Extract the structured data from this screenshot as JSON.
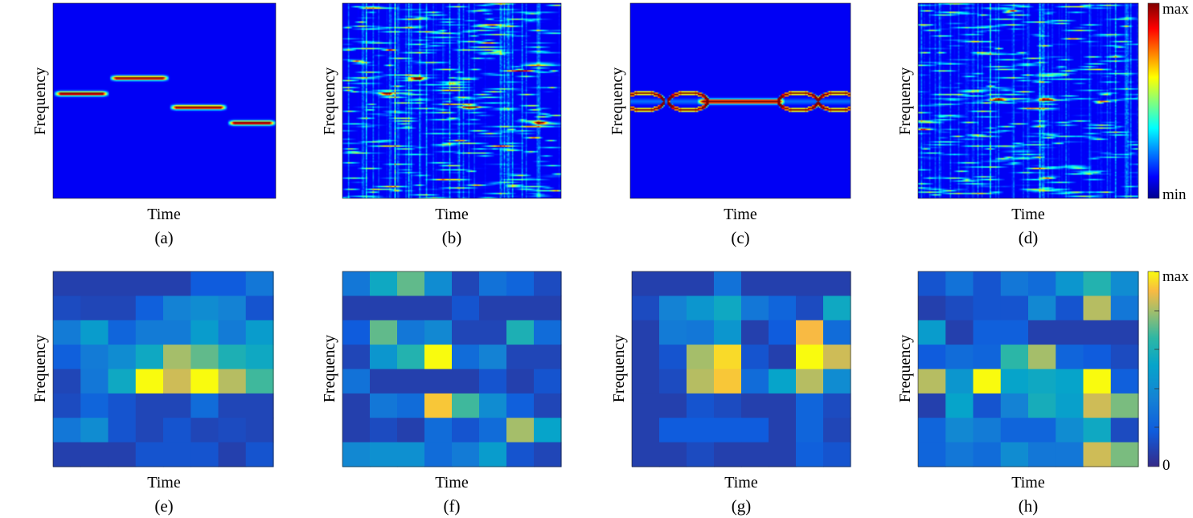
{
  "colors": {
    "jet_low": "#00008f",
    "jet_mid": "#00ffff",
    "jet_high": "#800000",
    "parula_low": "#352a87",
    "parula_mid": "#1ab2c3",
    "parula_high": "#f9fb0e"
  },
  "colorbars": {
    "top": {
      "colormap": "jet",
      "max_label": "max",
      "min_label": "min"
    },
    "bottom": {
      "colormap": "parula",
      "max_label": "max",
      "min_label": "0"
    }
  },
  "chart_data": [
    {
      "type": "heatmap",
      "panel": "(a)",
      "colormap": "jet",
      "xlabel": "Time",
      "ylabel": "Frequency",
      "description_tracks": [
        [
          0.0,
          0.25,
          0.46
        ],
        [
          0.25,
          0.52,
          0.38
        ],
        [
          0.52,
          0.78,
          0.53
        ],
        [
          0.78,
          1.0,
          0.61
        ]
      ]
    },
    {
      "type": "heatmap",
      "panel": "(b)",
      "colormap": "jet",
      "xlabel": "Time",
      "ylabel": "Frequency",
      "noise_level": 0.35,
      "seed": 7,
      "peaks": [
        [
          0.2,
          0.46
        ],
        [
          0.34,
          0.38
        ],
        [
          0.58,
          0.53
        ],
        [
          0.9,
          0.61
        ]
      ]
    },
    {
      "type": "heatmap",
      "panel": "(c)",
      "colormap": "jet",
      "xlabel": "Time",
      "ylabel": "Frequency",
      "tracks": [
        [
          0.3,
          0.7,
          0.5
        ]
      ],
      "ring_level": 0.5
    },
    {
      "type": "heatmap",
      "panel": "(d)",
      "colormap": "jet",
      "xlabel": "Time",
      "ylabel": "Frequency",
      "noise_level": 0.35,
      "seed": 23,
      "peaks": [
        [
          0.36,
          0.49
        ],
        [
          0.58,
          0.49
        ]
      ]
    },
    {
      "type": "heatmap",
      "panel": "(e)",
      "colormap": "parula",
      "xlabel": "Time",
      "ylabel": "Frequency",
      "values": [
        [
          0.08,
          0.08,
          0.08,
          0.08,
          0.08,
          0.18,
          0.18,
          0.3
        ],
        [
          0.12,
          0.1,
          0.1,
          0.2,
          0.35,
          0.4,
          0.35,
          0.15
        ],
        [
          0.32,
          0.48,
          0.22,
          0.32,
          0.32,
          0.48,
          0.32,
          0.48
        ],
        [
          0.2,
          0.32,
          0.4,
          0.55,
          0.8,
          0.72,
          0.6,
          0.55
        ],
        [
          0.1,
          0.3,
          0.55,
          1.0,
          0.85,
          1.0,
          0.82,
          0.68
        ],
        [
          0.12,
          0.22,
          0.15,
          0.1,
          0.1,
          0.25,
          0.1,
          0.1
        ],
        [
          0.3,
          0.4,
          0.15,
          0.1,
          0.15,
          0.1,
          0.12,
          0.1
        ],
        [
          0.08,
          0.08,
          0.08,
          0.15,
          0.15,
          0.15,
          0.08,
          0.15
        ]
      ]
    },
    {
      "type": "heatmap",
      "panel": "(f)",
      "colormap": "parula",
      "xlabel": "Time",
      "ylabel": "Frequency",
      "values": [
        [
          0.3,
          0.55,
          0.72,
          0.4,
          0.1,
          0.28,
          0.22,
          0.12
        ],
        [
          0.08,
          0.08,
          0.08,
          0.08,
          0.15,
          0.08,
          0.08,
          0.08
        ],
        [
          0.18,
          0.72,
          0.3,
          0.38,
          0.1,
          0.1,
          0.6,
          0.25
        ],
        [
          0.1,
          0.45,
          0.62,
          1.0,
          0.25,
          0.35,
          0.1,
          0.1
        ],
        [
          0.28,
          0.08,
          0.08,
          0.08,
          0.08,
          0.15,
          0.08,
          0.15
        ],
        [
          0.08,
          0.3,
          0.25,
          0.92,
          0.68,
          0.4,
          0.2,
          0.1
        ],
        [
          0.08,
          0.12,
          0.08,
          0.25,
          0.15,
          0.25,
          0.8,
          0.52
        ],
        [
          0.38,
          0.42,
          0.42,
          0.25,
          0.32,
          0.48,
          0.15,
          0.1
        ]
      ]
    },
    {
      "type": "heatmap",
      "panel": "(g)",
      "colormap": "parula",
      "xlabel": "Time",
      "ylabel": "Frequency",
      "values": [
        [
          0.08,
          0.08,
          0.08,
          0.28,
          0.08,
          0.08,
          0.08,
          0.08
        ],
        [
          0.12,
          0.35,
          0.45,
          0.55,
          0.3,
          0.22,
          0.12,
          0.55
        ],
        [
          0.08,
          0.32,
          0.3,
          0.45,
          0.08,
          0.18,
          0.9,
          0.25
        ],
        [
          0.08,
          0.15,
          0.8,
          0.95,
          0.15,
          0.08,
          1.0,
          0.85
        ],
        [
          0.08,
          0.12,
          0.82,
          0.92,
          0.25,
          0.52,
          0.82,
          0.4
        ],
        [
          0.08,
          0.08,
          0.15,
          0.12,
          0.08,
          0.08,
          0.22,
          0.12
        ],
        [
          0.08,
          0.18,
          0.18,
          0.18,
          0.18,
          0.08,
          0.22,
          0.1
        ],
        [
          0.08,
          0.08,
          0.12,
          0.08,
          0.08,
          0.08,
          0.2,
          0.15
        ]
      ]
    },
    {
      "type": "heatmap",
      "panel": "(h)",
      "colormap": "parula",
      "xlabel": "Time",
      "ylabel": "Frequency",
      "values": [
        [
          0.15,
          0.28,
          0.15,
          0.3,
          0.25,
          0.45,
          0.62,
          0.4
        ],
        [
          0.08,
          0.12,
          0.15,
          0.15,
          0.38,
          0.15,
          0.82,
          0.3
        ],
        [
          0.48,
          0.08,
          0.2,
          0.2,
          0.08,
          0.08,
          0.08,
          0.08
        ],
        [
          0.18,
          0.25,
          0.22,
          0.65,
          0.8,
          0.22,
          0.18,
          0.12
        ],
        [
          0.82,
          0.45,
          1.0,
          0.52,
          0.55,
          0.52,
          1.0,
          0.2
        ],
        [
          0.08,
          0.52,
          0.15,
          0.35,
          0.58,
          0.5,
          0.85,
          0.75
        ],
        [
          0.22,
          0.38,
          0.32,
          0.22,
          0.22,
          0.4,
          0.55,
          0.12
        ],
        [
          0.22,
          0.3,
          0.25,
          0.4,
          0.3,
          0.3,
          0.85,
          0.75
        ]
      ]
    }
  ]
}
